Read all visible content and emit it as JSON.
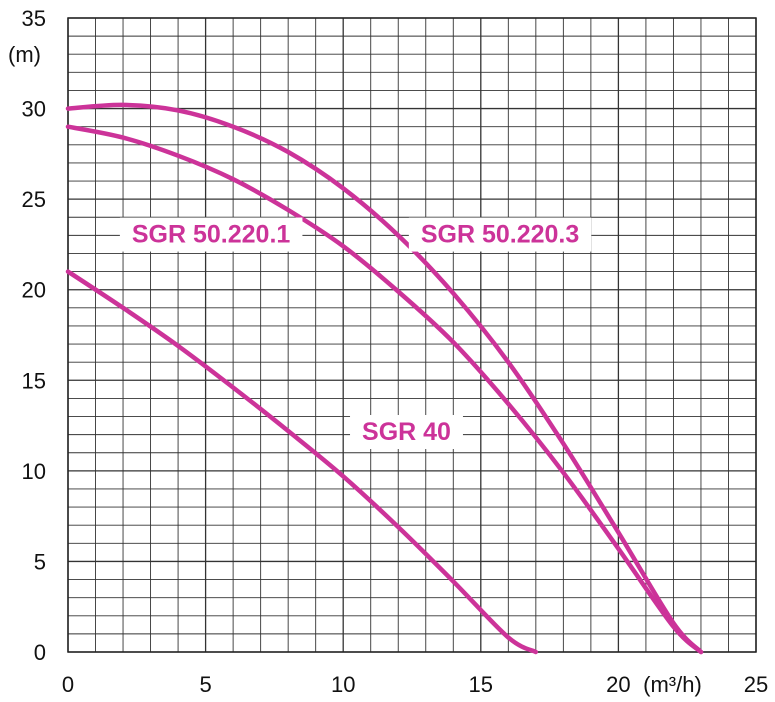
{
  "chart_data": {
    "type": "line",
    "xlabel": "(m³/h)",
    "ylabel": "(m)",
    "xlim": [
      0,
      25
    ],
    "ylim": [
      0,
      35
    ],
    "x_ticks": [
      0,
      5,
      10,
      15,
      20,
      25
    ],
    "y_ticks": [
      0,
      5,
      10,
      15,
      20,
      25,
      30,
      35
    ],
    "x_tick_labels": [
      "0",
      "5",
      "10",
      "15",
      "20",
      "25"
    ],
    "y_tick_labels": [
      "0",
      "5",
      "10",
      "15",
      "20",
      "25",
      "30",
      "35"
    ],
    "grid": true,
    "grid_minor_step": 1,
    "series_color": "#cc3399",
    "label_color": "#cc3399",
    "series": [
      {
        "name": "SGR 50.220.3",
        "x": [
          0,
          2,
          4,
          6,
          8,
          10,
          12,
          14,
          16,
          18,
          20,
          22,
          23
        ],
        "y": [
          30,
          30.2,
          29.9,
          29.0,
          27.6,
          25.6,
          23.0,
          19.8,
          16.0,
          11.5,
          6.6,
          1.6,
          0
        ]
      },
      {
        "name": "SGR 50.220.1",
        "x": [
          0,
          2,
          4,
          6,
          8,
          10,
          12,
          14,
          16,
          18,
          20,
          22,
          23
        ],
        "y": [
          29,
          28.4,
          27.4,
          26.1,
          24.4,
          22.4,
          19.9,
          17.1,
          13.7,
          9.9,
          5.7,
          1.4,
          0
        ]
      },
      {
        "name": "SGR 40",
        "x": [
          0,
          2,
          4,
          6,
          8,
          10,
          12,
          14,
          16,
          17
        ],
        "y": [
          21,
          19.0,
          16.9,
          14.6,
          12.2,
          9.7,
          6.9,
          3.9,
          0.8,
          0
        ]
      }
    ]
  }
}
